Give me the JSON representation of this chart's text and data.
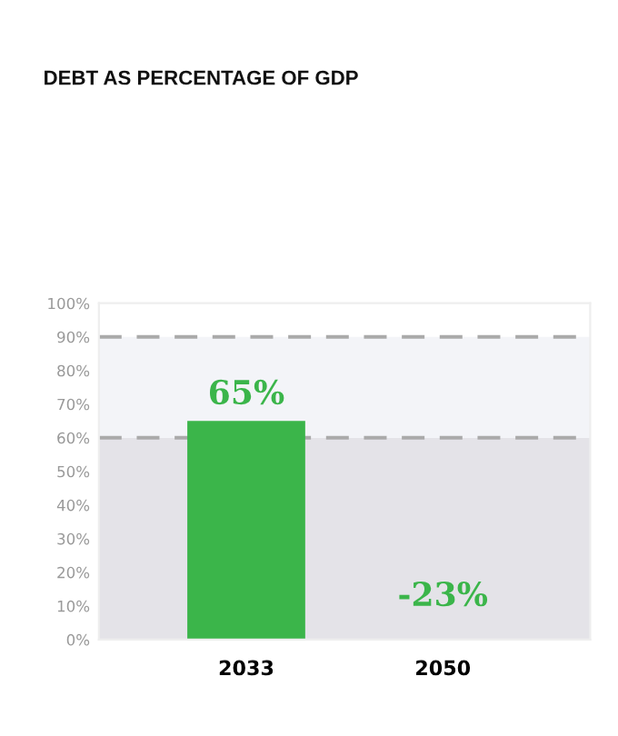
{
  "chart_data": {
    "type": "bar",
    "title": "DEBT AS PERCENTAGE OF GDP",
    "categories": [
      "2033",
      "2050"
    ],
    "values": [
      65,
      null
    ],
    "value_labels": [
      "65%",
      "-23%"
    ],
    "color": "#3bb54a",
    "ylim": [
      0,
      100
    ],
    "yticks": [
      {
        "value": 0,
        "label": "0%"
      },
      {
        "value": 10,
        "label": "10%"
      },
      {
        "value": 20,
        "label": "20%"
      },
      {
        "value": 30,
        "label": "30%"
      },
      {
        "value": 40,
        "label": "40%"
      },
      {
        "value": 50,
        "label": "50%"
      },
      {
        "value": 60,
        "label": "60%"
      },
      {
        "value": 70,
        "label": "70%"
      },
      {
        "value": 80,
        "label": "80%"
      },
      {
        "value": 90,
        "label": "90%"
      },
      {
        "value": 100,
        "label": "100%"
      }
    ],
    "bands": [
      {
        "axis": "y",
        "from": 0,
        "to": 60,
        "color": "#e4e3e8"
      },
      {
        "axis": "y",
        "from": 60,
        "to": 90,
        "color": "#f3f4f8"
      }
    ],
    "ref_lines": [
      {
        "axis": "y",
        "value": 60,
        "color": "#aaaaaa",
        "line_style": "dashed"
      },
      {
        "axis": "y",
        "value": 90,
        "color": "#aaaaaa",
        "line_style": "dashed"
      }
    ],
    "grid": false,
    "legend": false
  }
}
